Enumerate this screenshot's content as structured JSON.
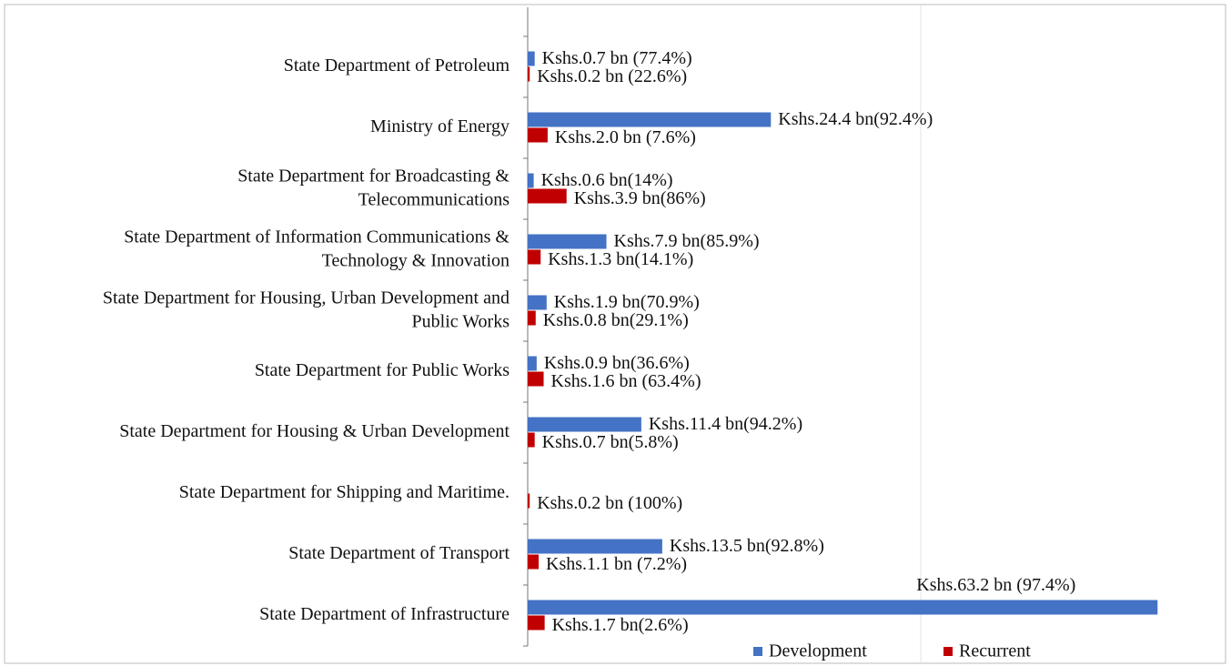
{
  "chart_data": {
    "type": "bar",
    "orientation": "horizontal",
    "categories": [
      "State Department of Petroleum",
      "Ministry of Energy",
      "State Department for Broadcasting &\nTelecommunications",
      "State Department of Information Communications &\nTechnology & Innovation",
      "State Department for Housing, Urban Development and\nPublic Works",
      "State Department for Public Works",
      "State Department for Housing & Urban Development",
      "State Department for Shipping and  Maritime.",
      "State Department of Transport",
      "State Department of Infrastructure"
    ],
    "series": [
      {
        "name": "Development",
        "color": "#4472c4",
        "values": [
          0.7,
          24.4,
          0.6,
          7.9,
          1.9,
          0.9,
          11.4,
          null,
          13.5,
          63.2
        ],
        "value_labels": [
          "Kshs.0.7 bn (77.4%)",
          "Kshs.24.4 bn(92.4%)",
          "Kshs.0.6 bn(14%)",
          "Kshs.7.9 bn(85.9%)",
          "Kshs.1.9 bn(70.9%)",
          "Kshs.0.9 bn(36.6%)",
          "Kshs.11.4 bn(94.2%)",
          null,
          "Kshs.13.5 bn(92.8%)",
          "Kshs.63.2 bn (97.4%)"
        ]
      },
      {
        "name": "Recurrent",
        "color": "#c00000",
        "values": [
          0.2,
          2.0,
          3.9,
          1.3,
          0.8,
          1.6,
          0.7,
          0.2,
          1.1,
          1.7
        ],
        "value_labels": [
          "Kshs.0.2 bn (22.6%)",
          "Kshs.2.0 bn (7.6%)",
          "Kshs.3.9 bn(86%)",
          "Kshs.1.3 bn(14.1%)",
          "Kshs.0.8 bn(29.1%)",
          "Kshs.1.6 bn (63.4%)",
          "Kshs.0.7 bn(5.8%)",
          "Kshs.0.2 bn (100%)",
          "Kshs.1.1 bn (7.2%)",
          "Kshs.1.7 bn(2.6%)"
        ]
      }
    ],
    "xlim": [
      0,
      65
    ],
    "legend": "bottom-right"
  }
}
